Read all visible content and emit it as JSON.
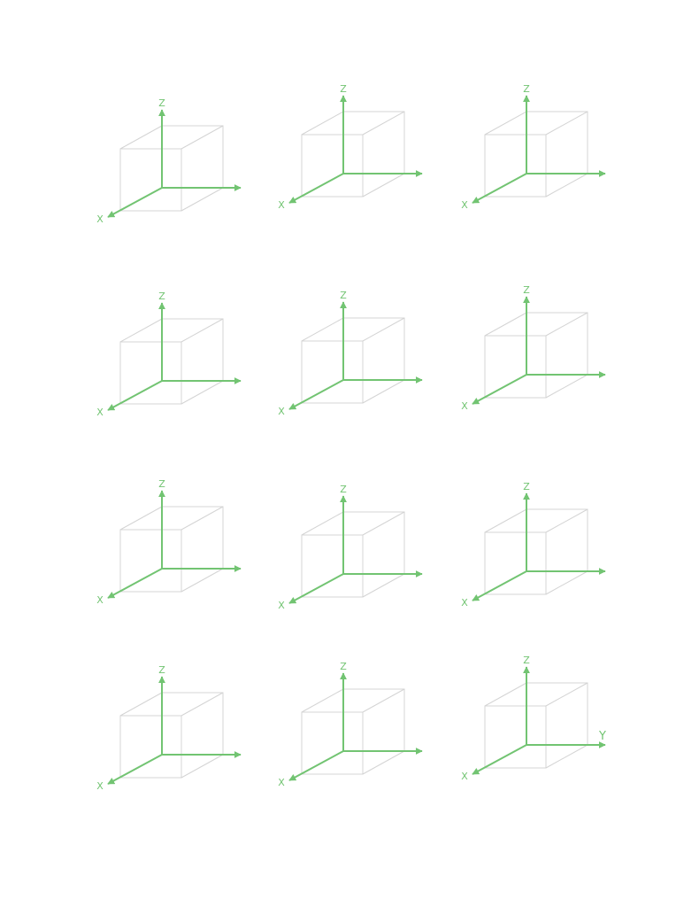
{
  "colors": {
    "axis": "#72c472",
    "cube": "#d4d4d4",
    "background": "#ffffff"
  },
  "labels": {
    "z": "Z",
    "x": "X",
    "y": "Y"
  },
  "diagrams": [
    {
      "row": 1,
      "col": 1,
      "show_y_label": false
    },
    {
      "row": 1,
      "col": 2,
      "show_y_label": false
    },
    {
      "row": 1,
      "col": 3,
      "show_y_label": false
    },
    {
      "row": 2,
      "col": 1,
      "show_y_label": false
    },
    {
      "row": 2,
      "col": 2,
      "show_y_label": false
    },
    {
      "row": 2,
      "col": 3,
      "show_y_label": false
    },
    {
      "row": 3,
      "col": 1,
      "show_y_label": false
    },
    {
      "row": 3,
      "col": 2,
      "show_y_label": false
    },
    {
      "row": 3,
      "col": 3,
      "show_y_label": false
    },
    {
      "row": 4,
      "col": 1,
      "show_y_label": false
    },
    {
      "row": 4,
      "col": 2,
      "show_y_label": false
    },
    {
      "row": 4,
      "col": 3,
      "show_y_label": true
    }
  ]
}
